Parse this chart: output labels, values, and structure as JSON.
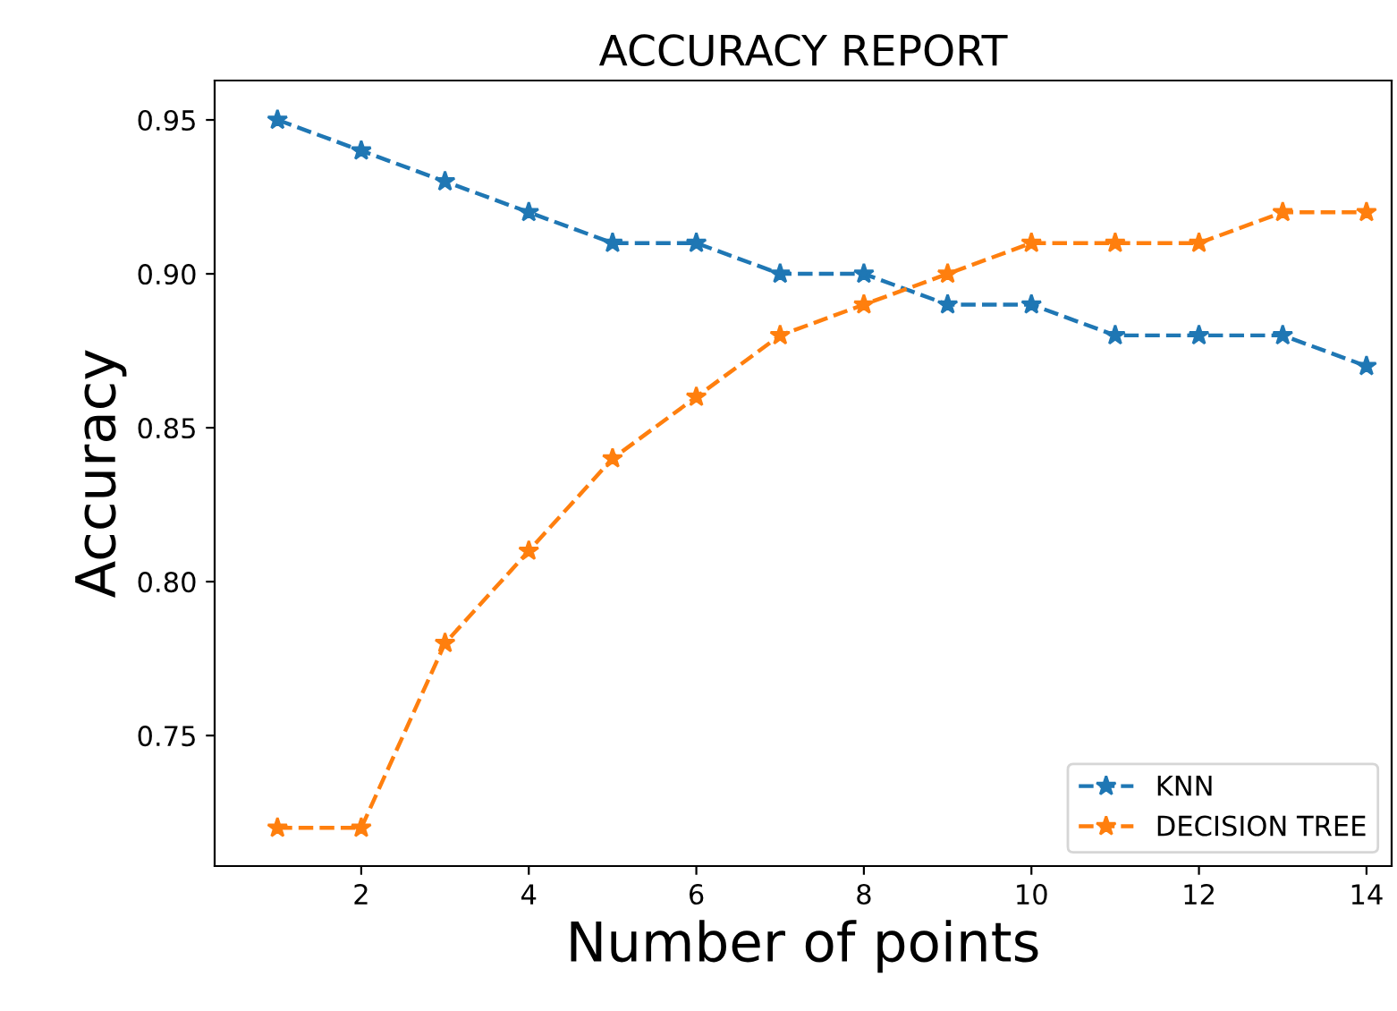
{
  "chart_data": {
    "type": "line",
    "title": "ACCURACY REPORT",
    "xlabel": "Number of points",
    "ylabel": "Accuracy",
    "x": [
      1,
      2,
      3,
      4,
      5,
      6,
      7,
      8,
      9,
      10,
      11,
      12,
      13,
      14
    ],
    "series": [
      {
        "name": "KNN",
        "color": "#1f77b4",
        "values": [
          0.95,
          0.94,
          0.93,
          0.92,
          0.91,
          0.91,
          0.9,
          0.9,
          0.89,
          0.89,
          0.88,
          0.88,
          0.88,
          0.87
        ]
      },
      {
        "name": "DECISION TREE",
        "color": "#ff7f0e",
        "values": [
          0.72,
          0.72,
          0.78,
          0.81,
          0.84,
          0.86,
          0.88,
          0.89,
          0.9,
          0.91,
          0.91,
          0.91,
          0.92,
          0.92
        ]
      }
    ],
    "xlim": [
      0.25,
      14.3
    ],
    "xticks": [
      2,
      4,
      6,
      8,
      10,
      12,
      14
    ],
    "ylim": [
      0.7076,
      0.9628
    ],
    "yticks": [
      {
        "value": 0.75,
        "label": "0.75"
      },
      {
        "value": 0.8,
        "label": "0.80"
      },
      {
        "value": 0.85,
        "label": "0.85"
      },
      {
        "value": 0.9,
        "label": "0.90"
      },
      {
        "value": 0.95,
        "label": "0.95"
      }
    ],
    "legend": "lower right",
    "marker": "star",
    "line_style": "dashed",
    "grid": false
  }
}
